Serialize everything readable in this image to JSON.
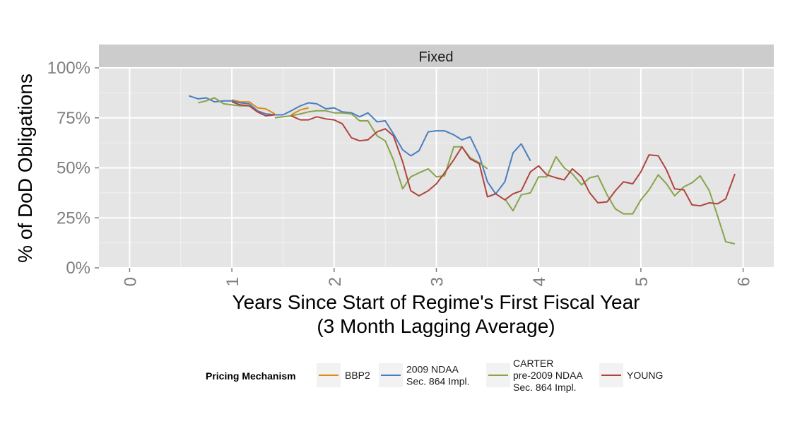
{
  "chart_data": {
    "type": "line",
    "facet": "Fixed",
    "xlabel": [
      "Years Since Start of Regime's First Fiscal Year",
      "(3 Month Lagging Average)"
    ],
    "ylabel": "% of DoD Obligations",
    "xlim": [
      -0.3,
      6.3
    ],
    "ylim": [
      0,
      1
    ],
    "x_ticks": [
      0,
      1,
      2,
      3,
      4,
      5,
      6
    ],
    "y_ticks": [
      0,
      0.25,
      0.5,
      0.75,
      1.0
    ],
    "y_tick_labels": [
      "0%",
      "25%",
      "50%",
      "75%",
      "100%"
    ],
    "grid": true,
    "legend": {
      "title": "Pricing Mechanism",
      "position": "bottom",
      "entries": [
        {
          "label": [
            "BBP2"
          ],
          "color": "#E08A16"
        },
        {
          "label": [
            "2009 NDAA",
            "Sec. 864 Impl."
          ],
          "color": "#4A7EC0"
        },
        {
          "label": [
            "CARTER",
            "pre-2009 NDAA",
            "Sec. 864 Impl."
          ],
          "color": "#87A44A"
        },
        {
          "label": [
            "YOUNG"
          ],
          "color": "#B0443E"
        }
      ]
    },
    "series": [
      {
        "name": "BBP2",
        "color": "#E08A16",
        "segments": [
          [
            [
              1.0,
              0.84
            ],
            [
              1.08,
              0.83
            ],
            [
              1.17,
              0.83
            ],
            [
              1.25,
              0.8
            ],
            [
              1.33,
              0.795
            ],
            [
              1.42,
              0.77
            ]
          ],
          [
            [
              1.58,
              0.765
            ],
            [
              1.67,
              0.79
            ],
            [
              1.75,
              0.8
            ]
          ]
        ]
      },
      {
        "name": "2009 NDAA Sec. 864 Impl.",
        "color": "#4A7EC0",
        "segments": [
          [
            [
              0.58,
              0.86
            ],
            [
              0.67,
              0.845
            ],
            [
              0.75,
              0.85
            ],
            [
              0.83,
              0.83
            ],
            [
              0.92,
              0.835
            ],
            [
              1.0,
              0.835
            ],
            [
              1.08,
              0.825
            ],
            [
              1.17,
              0.82
            ],
            [
              1.25,
              0.785
            ],
            [
              1.33,
              0.77
            ],
            [
              1.42,
              0.765
            ],
            [
              1.5,
              0.765
            ],
            [
              1.58,
              0.785
            ],
            [
              1.67,
              0.81
            ],
            [
              1.75,
              0.825
            ],
            [
              1.83,
              0.82
            ],
            [
              1.92,
              0.795
            ],
            [
              2.0,
              0.8
            ],
            [
              2.08,
              0.78
            ],
            [
              2.17,
              0.775
            ],
            [
              2.25,
              0.755
            ],
            [
              2.33,
              0.775
            ],
            [
              2.42,
              0.73
            ],
            [
              2.5,
              0.735
            ],
            [
              2.58,
              0.67
            ],
            [
              2.67,
              0.59
            ],
            [
              2.75,
              0.56
            ],
            [
              2.83,
              0.585
            ],
            [
              2.92,
              0.68
            ],
            [
              3.0,
              0.685
            ],
            [
              3.08,
              0.685
            ],
            [
              3.17,
              0.665
            ],
            [
              3.25,
              0.64
            ],
            [
              3.33,
              0.655
            ],
            [
              3.42,
              0.56
            ],
            [
              3.5,
              0.43
            ],
            [
              3.58,
              0.37
            ],
            [
              3.67,
              0.43
            ],
            [
              3.75,
              0.575
            ],
            [
              3.83,
              0.62
            ],
            [
              3.92,
              0.535
            ]
          ]
        ]
      },
      {
        "name": "CARTER pre-2009 NDAA Sec. 864 Impl.",
        "color": "#87A44A",
        "segments": [
          [
            [
              0.67,
              0.825
            ],
            [
              0.75,
              0.835
            ],
            [
              0.83,
              0.85
            ],
            [
              0.92,
              0.82
            ],
            [
              1.0,
              0.815
            ],
            [
              1.08,
              0.81
            ],
            [
              1.17,
              0.81
            ]
          ],
          [
            [
              1.42,
              0.75
            ],
            [
              1.5,
              0.755
            ],
            [
              1.58,
              0.76
            ],
            [
              1.67,
              0.77
            ],
            [
              1.75,
              0.78
            ],
            [
              1.83,
              0.785
            ],
            [
              1.92,
              0.785
            ],
            [
              2.0,
              0.775
            ],
            [
              2.08,
              0.775
            ],
            [
              2.17,
              0.77
            ],
            [
              2.25,
              0.735
            ],
            [
              2.33,
              0.735
            ],
            [
              2.42,
              0.66
            ],
            [
              2.5,
              0.635
            ],
            [
              2.58,
              0.54
            ],
            [
              2.67,
              0.395
            ],
            [
              2.75,
              0.455
            ],
            [
              2.83,
              0.475
            ],
            [
              2.92,
              0.495
            ],
            [
              3.0,
              0.455
            ],
            [
              3.08,
              0.46
            ],
            [
              3.17,
              0.605
            ],
            [
              3.25,
              0.605
            ],
            [
              3.33,
              0.55
            ],
            [
              3.42,
              0.525
            ],
            [
              3.5,
              0.495
            ]
          ],
          [
            [
              3.67,
              0.345
            ],
            [
              3.75,
              0.285
            ],
            [
              3.83,
              0.365
            ],
            [
              3.92,
              0.375
            ],
            [
              4.0,
              0.455
            ],
            [
              4.08,
              0.455
            ],
            [
              4.17,
              0.555
            ],
            [
              4.25,
              0.5
            ],
            [
              4.33,
              0.47
            ],
            [
              4.42,
              0.415
            ],
            [
              4.5,
              0.45
            ],
            [
              4.58,
              0.46
            ],
            [
              4.67,
              0.365
            ],
            [
              4.75,
              0.295
            ],
            [
              4.83,
              0.27
            ],
            [
              4.92,
              0.27
            ],
            [
              5.0,
              0.34
            ],
            [
              5.08,
              0.39
            ],
            [
              5.17,
              0.465
            ],
            [
              5.25,
              0.42
            ],
            [
              5.33,
              0.36
            ],
            [
              5.42,
              0.405
            ],
            [
              5.5,
              0.425
            ],
            [
              5.58,
              0.46
            ],
            [
              5.67,
              0.385
            ],
            [
              5.75,
              0.26
            ],
            [
              5.83,
              0.13
            ],
            [
              5.92,
              0.12
            ]
          ]
        ]
      },
      {
        "name": "YOUNG",
        "color": "#B0443E",
        "segments": [
          [
            [
              1.0,
              0.83
            ],
            [
              1.08,
              0.815
            ],
            [
              1.17,
              0.81
            ],
            [
              1.25,
              0.78
            ],
            [
              1.33,
              0.76
            ],
            [
              1.42,
              0.765
            ]
          ],
          [
            [
              1.58,
              0.76
            ],
            [
              1.67,
              0.74
            ],
            [
              1.75,
              0.74
            ],
            [
              1.83,
              0.755
            ],
            [
              1.92,
              0.745
            ],
            [
              2.0,
              0.74
            ],
            [
              2.08,
              0.72
            ],
            [
              2.17,
              0.65
            ],
            [
              2.25,
              0.635
            ],
            [
              2.33,
              0.64
            ],
            [
              2.42,
              0.68
            ],
            [
              2.5,
              0.695
            ],
            [
              2.58,
              0.66
            ],
            [
              2.67,
              0.53
            ],
            [
              2.75,
              0.385
            ],
            [
              2.83,
              0.36
            ],
            [
              2.92,
              0.385
            ],
            [
              3.0,
              0.42
            ],
            [
              3.08,
              0.475
            ],
            [
              3.17,
              0.54
            ],
            [
              3.25,
              0.605
            ],
            [
              3.33,
              0.545
            ],
            [
              3.42,
              0.52
            ],
            [
              3.5,
              0.355
            ],
            [
              3.58,
              0.37
            ],
            [
              3.67,
              0.34
            ],
            [
              3.75,
              0.37
            ],
            [
              3.83,
              0.385
            ],
            [
              3.92,
              0.48
            ],
            [
              4.0,
              0.51
            ],
            [
              4.08,
              0.465
            ],
            [
              4.17,
              0.45
            ],
            [
              4.25,
              0.44
            ],
            [
              4.33,
              0.495
            ],
            [
              4.42,
              0.455
            ],
            [
              4.5,
              0.375
            ],
            [
              4.58,
              0.325
            ],
            [
              4.67,
              0.33
            ],
            [
              4.75,
              0.385
            ],
            [
              4.83,
              0.43
            ],
            [
              4.92,
              0.42
            ],
            [
              5.0,
              0.48
            ],
            [
              5.08,
              0.565
            ],
            [
              5.17,
              0.56
            ],
            [
              5.25,
              0.49
            ],
            [
              5.33,
              0.395
            ],
            [
              5.42,
              0.39
            ],
            [
              5.5,
              0.315
            ],
            [
              5.58,
              0.31
            ],
            [
              5.67,
              0.325
            ],
            [
              5.75,
              0.32
            ],
            [
              5.83,
              0.345
            ],
            [
              5.92,
              0.47
            ]
          ]
        ]
      }
    ]
  }
}
